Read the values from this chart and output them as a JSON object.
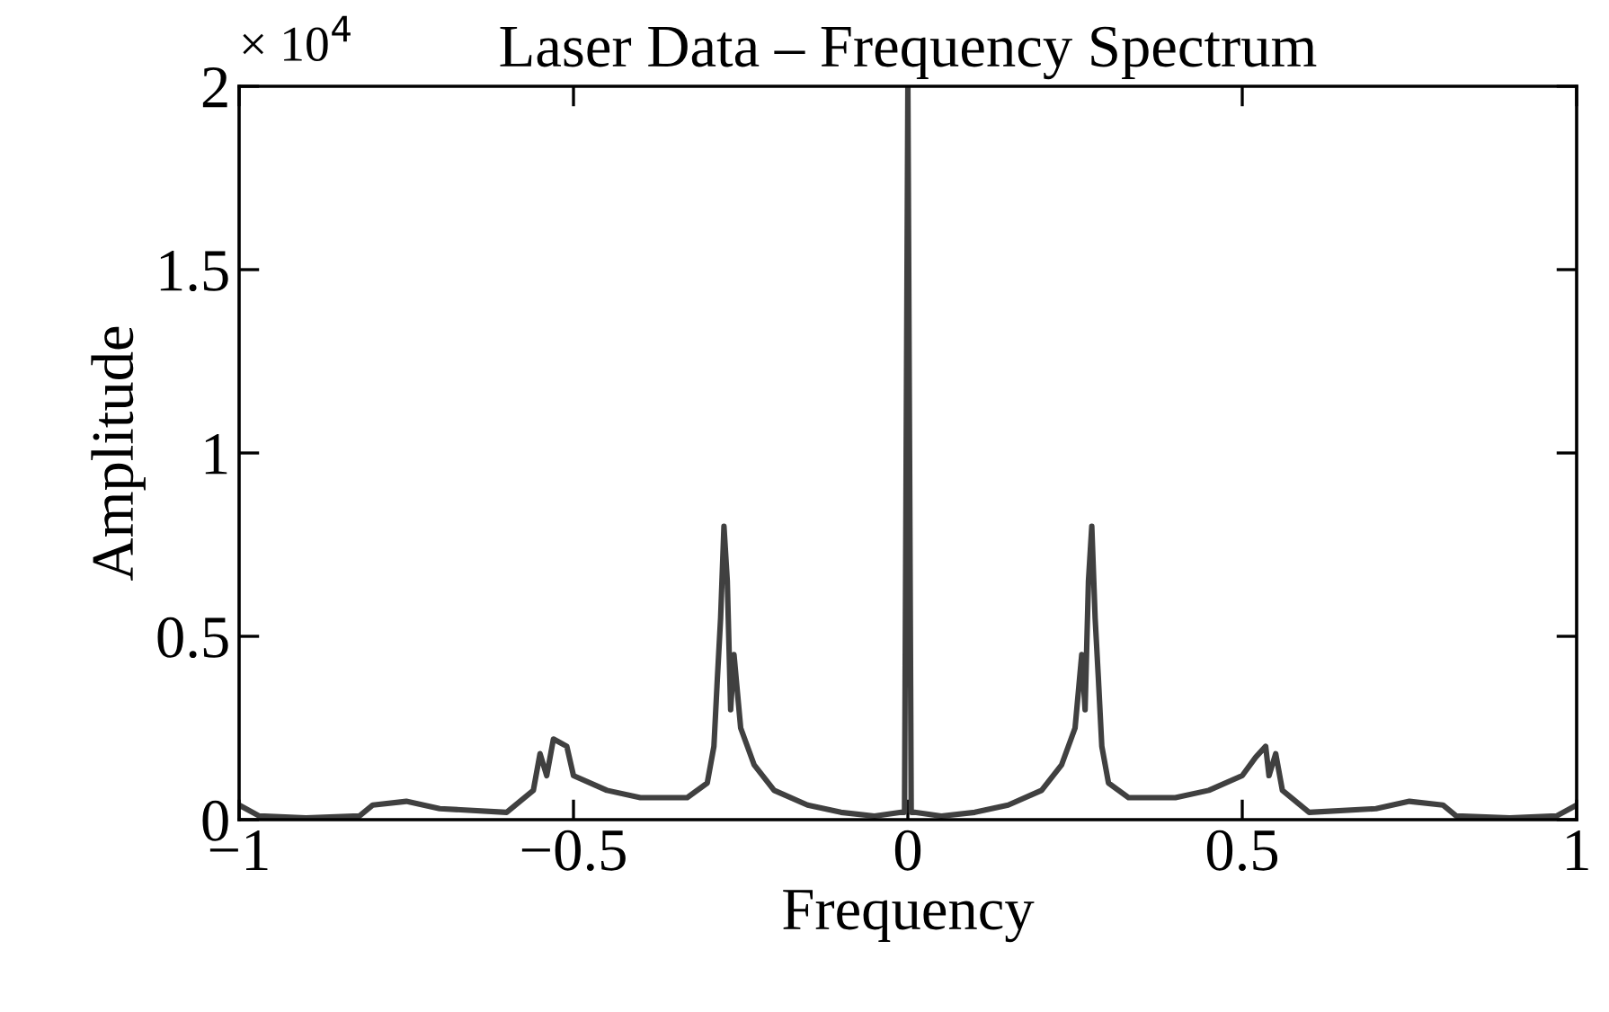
{
  "chart_data": {
    "type": "line",
    "title": "Laser Data – Frequency Spectrum",
    "xlabel": "Frequency",
    "ylabel": "Amplitude",
    "annotations": [
      "× 10$^{4}$"
    ],
    "xlim": [
      -1,
      1
    ],
    "xticks": [
      -1,
      -0.5,
      0,
      0.5,
      1
    ],
    "ylim": [
      0,
      2
    ],
    "yticks": [
      0,
      0.5,
      1,
      1.5,
      2
    ],
    "grid": false,
    "marker": "none",
    "line_style": "solid",
    "series": [
      {
        "color": "#404040",
        "x": [
          -1.0,
          -0.97,
          -0.9,
          -0.82,
          -0.8,
          -0.75,
          -0.7,
          -0.6,
          -0.56,
          -0.55,
          -0.54,
          -0.53,
          -0.51,
          -0.5,
          -0.45,
          -0.4,
          -0.33,
          -0.3,
          -0.29,
          -0.285,
          -0.28,
          -0.275,
          -0.27,
          -0.265,
          -0.26,
          -0.25,
          -0.23,
          -0.2,
          -0.15,
          -0.1,
          -0.05,
          -0.01,
          -0.005,
          0.0,
          0.005,
          0.01,
          0.05,
          0.1,
          0.15,
          0.2,
          0.23,
          0.25,
          0.26,
          0.265,
          0.27,
          0.275,
          0.28,
          0.285,
          0.29,
          0.3,
          0.33,
          0.4,
          0.45,
          0.5,
          0.52,
          0.535,
          0.54,
          0.55,
          0.56,
          0.6,
          0.7,
          0.75,
          0.8,
          0.82,
          0.9,
          0.97,
          1.0
        ],
        "values": [
          0.04,
          0.01,
          0.005,
          0.01,
          0.04,
          0.05,
          0.03,
          0.02,
          0.08,
          0.18,
          0.12,
          0.22,
          0.2,
          0.12,
          0.08,
          0.06,
          0.06,
          0.1,
          0.2,
          0.38,
          0.55,
          0.8,
          0.65,
          0.3,
          0.45,
          0.25,
          0.15,
          0.08,
          0.04,
          0.02,
          0.01,
          0.02,
          0.02,
          2.0,
          0.02,
          0.02,
          0.01,
          0.02,
          0.04,
          0.08,
          0.15,
          0.25,
          0.45,
          0.3,
          0.65,
          0.8,
          0.55,
          0.38,
          0.2,
          0.1,
          0.06,
          0.06,
          0.08,
          0.12,
          0.17,
          0.2,
          0.12,
          0.18,
          0.08,
          0.02,
          0.03,
          0.05,
          0.04,
          0.01,
          0.005,
          0.01,
          0.04
        ]
      }
    ]
  }
}
